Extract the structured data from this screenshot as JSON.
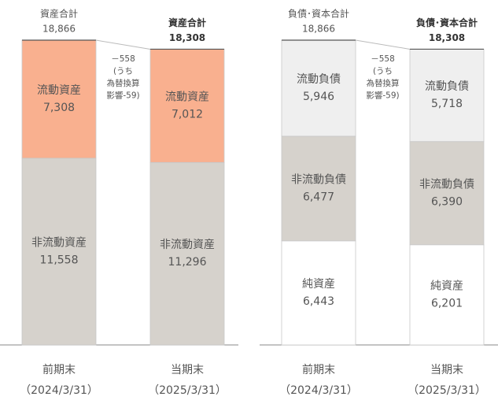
{
  "chart_data": [
    {
      "type": "stacked_bar",
      "categories": [
        "前期末",
        "当期末"
      ],
      "category_dates": [
        "（2024/3/31）",
        "（2025/3/31）"
      ],
      "series": [
        {
          "name": "非流動資産",
          "color": "#d6d2cc",
          "values": [
            11558,
            11296
          ],
          "value_labels": [
            "11,558",
            "11,296"
          ]
        },
        {
          "name": "流動資産",
          "color": "#f9b08f",
          "values": [
            7308,
            7012
          ],
          "value_labels": [
            "7,308",
            "7,012"
          ]
        }
      ],
      "totals": {
        "labels": [
          "資産合計",
          "資産合計"
        ],
        "values": [
          18866,
          18308
        ],
        "value_labels": [
          "18,866",
          "18,308"
        ]
      },
      "annotation": [
        "－558",
        "(うち",
        "為替換算",
        "影響-59)"
      ]
    },
    {
      "type": "stacked_bar",
      "categories": [
        "前期末",
        "当期末"
      ],
      "category_dates": [
        "（2024/3/31）",
        "（2025/3/31）"
      ],
      "series": [
        {
          "name": "純資産",
          "color": "#ffffff",
          "values": [
            6443,
            6201
          ],
          "value_labels": [
            "6,443",
            "6,201"
          ]
        },
        {
          "name": "非流動負債",
          "color": "#d6d2cc",
          "values": [
            6477,
            6390
          ],
          "value_labels": [
            "6,477",
            "6,390"
          ]
        },
        {
          "name": "流動負債",
          "color": "#efefef",
          "values": [
            5946,
            5718
          ],
          "value_labels": [
            "5,946",
            "5,718"
          ]
        }
      ],
      "totals": {
        "labels": [
          "負債･資本合計",
          "負債･資本合計"
        ],
        "values": [
          18866,
          18308
        ],
        "value_labels": [
          "18,866",
          "18,308"
        ]
      },
      "annotation": [
        "－558",
        "(うち",
        "為替換算",
        "影響-59)"
      ]
    }
  ]
}
